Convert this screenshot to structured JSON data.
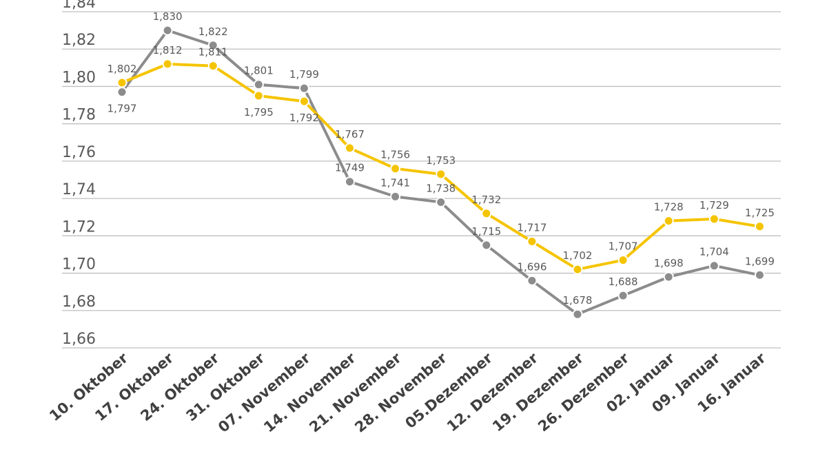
{
  "chart_data": {
    "type": "line",
    "title": "",
    "xlabel": "",
    "ylabel": "",
    "ylim": [
      1.66,
      1.84
    ],
    "y_ticks": [
      "1,66",
      "1,68",
      "1,70",
      "1,72",
      "1,74",
      "1,76",
      "1,78",
      "1,80",
      "1,82",
      "1,84"
    ],
    "grid": true,
    "legend": "none",
    "categories": [
      "10. Oktober",
      "17. Oktober",
      "24. Oktober",
      "31. Oktober",
      "07. November",
      "14. November",
      "21. November",
      "28. November",
      "05.Dezember",
      "12. Dezember",
      "19. Dezember",
      "26. Dezember",
      "02. Januar",
      "09. Januar",
      "16. Januar"
    ],
    "series": [
      {
        "name": "gray",
        "color": "#8c8c8c",
        "values": [
          1.797,
          1.83,
          1.822,
          1.801,
          1.799,
          1.749,
          1.741,
          1.738,
          1.715,
          1.696,
          1.678,
          1.688,
          1.698,
          1.704,
          1.699
        ],
        "labels": [
          "1,797",
          "1,830",
          "1,822",
          "1,801",
          "1,799",
          "1,749",
          "1,741",
          "1,738",
          "1,715",
          "1,696",
          "1,678",
          "1,688",
          "1,698",
          "1,704",
          "1,699"
        ],
        "label_positions": [
          "below",
          "above",
          "above",
          "above",
          "above",
          "above",
          "above",
          "above",
          "above",
          "above",
          "above",
          "above",
          "above",
          "above",
          "above"
        ]
      },
      {
        "name": "yellow",
        "color": "#f5c400",
        "values": [
          1.802,
          1.812,
          1.811,
          1.795,
          1.792,
          1.767,
          1.756,
          1.753,
          1.732,
          1.717,
          1.702,
          1.707,
          1.728,
          1.729,
          1.725
        ],
        "labels": [
          "1,802",
          "1,812",
          "1,811",
          "1,795",
          "1,792",
          "1,767",
          "1,756",
          "1,753",
          "1,732",
          "1,717",
          "1,702",
          "1,707",
          "1,728",
          "1,729",
          "1,725"
        ],
        "label_positions": [
          "above",
          "above",
          "above",
          "below",
          "below",
          "above",
          "above",
          "above",
          "above",
          "above",
          "above",
          "above",
          "above",
          "above",
          "above"
        ]
      }
    ]
  }
}
